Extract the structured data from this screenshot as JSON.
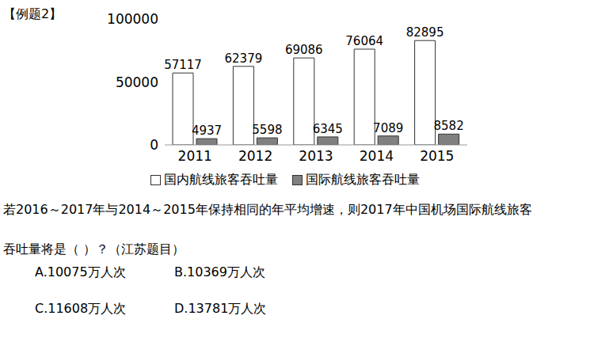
{
  "chart_data": {
    "type": "bar",
    "categories": [
      "2011",
      "2012",
      "2013",
      "2014",
      "2015"
    ],
    "series": [
      {
        "name": "国内航线旅客吞吐量",
        "color": "#ffffff",
        "values": [
          57117,
          62379,
          69086,
          76064,
          82895
        ]
      },
      {
        "name": "国际航线旅客吞吐量",
        "color": "#808080",
        "values": [
          4937,
          5598,
          6345,
          7089,
          8582
        ]
      }
    ],
    "ylim": [
      0,
      100000
    ],
    "yticks": [
      0,
      50000,
      100000
    ],
    "grid": false,
    "data_labels": true,
    "legend": "bottom"
  },
  "header": "【例题2】",
  "question": {
    "lines": [
      "若2016～2017年与2014～2015年保持相同的年平均增速，则2017年中国机场国际航线旅客",
      "吞吐量将是（ ）？（江苏题目）"
    ],
    "options": [
      "A.10075万人次",
      "B.10369万人次",
      "C.11608万人次",
      "D.13781万人次"
    ]
  }
}
